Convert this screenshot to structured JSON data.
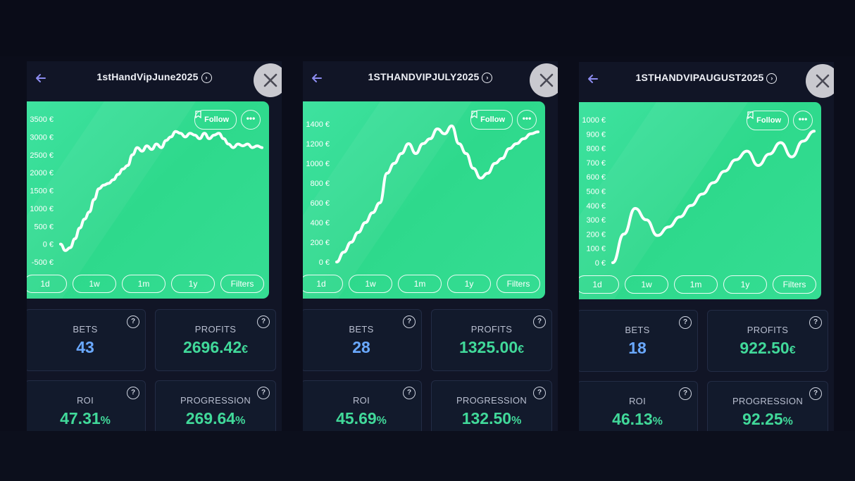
{
  "panels": [
    {
      "title": "1stHandVipJune2025",
      "follow_label": "Follow",
      "more_label": "•••",
      "ranges": [
        "1d",
        "1w",
        "1m",
        "1y",
        "Filters"
      ],
      "chart_data": {
        "type": "line",
        "y_ticks": [
          "3500 €",
          "3000 €",
          "2500 €",
          "2000 €",
          "1500 €",
          "1000 €",
          "500 €",
          "0 €",
          "-500 €"
        ],
        "ylim": [
          -500,
          3500
        ],
        "x": [
          0,
          1,
          2,
          3,
          4,
          5,
          6,
          7,
          8,
          9,
          10,
          11,
          12,
          13,
          14,
          15,
          16,
          17,
          18,
          19,
          20,
          21,
          22,
          23,
          24,
          25,
          26,
          27,
          28,
          29,
          30,
          31,
          32,
          33,
          34,
          35,
          36,
          37,
          38,
          39,
          40,
          41,
          42
        ],
        "values": [
          0,
          -180,
          -100,
          150,
          450,
          700,
          900,
          1250,
          1550,
          1650,
          1700,
          1800,
          1950,
          2100,
          2200,
          2500,
          2700,
          2600,
          2750,
          2650,
          2800,
          2700,
          2900,
          3000,
          3150,
          3100,
          3000,
          3100,
          3050,
          2950,
          3100,
          2950,
          3050,
          3100,
          2950,
          2800,
          2700,
          2800,
          2750,
          2800,
          2700,
          2750,
          2700
        ]
      },
      "stats": {
        "bets_label": "BETS",
        "bets_value": "43",
        "profits_label": "PROFITS",
        "profits_value": "2696.42",
        "profits_unit": "€",
        "roi_label": "ROI",
        "roi_value": "47.31",
        "roi_unit": "%",
        "progression_label": "PROGRESSION",
        "progression_value": "269.64",
        "progression_unit": "%"
      }
    },
    {
      "title": "1STHANDVIPJULY2025",
      "follow_label": "Follow",
      "more_label": "•••",
      "ranges": [
        "1d",
        "1w",
        "1m",
        "1y",
        "Filters"
      ],
      "chart_data": {
        "type": "line",
        "y_ticks": [
          "1400 €",
          "1200 €",
          "1000 €",
          "800 €",
          "600 €",
          "400 €",
          "200 €",
          "0 €"
        ],
        "ylim": [
          0,
          1450
        ],
        "x": [
          0,
          1,
          2,
          3,
          4,
          5,
          6,
          7,
          8,
          9,
          10,
          11,
          12,
          13,
          14,
          15,
          16,
          17,
          18,
          19,
          20,
          21,
          22,
          23,
          24,
          25,
          26,
          27,
          28
        ],
        "values": [
          0,
          100,
          200,
          300,
          400,
          500,
          600,
          900,
          1000,
          1100,
          1200,
          1100,
          1200,
          1250,
          1350,
          1300,
          1380,
          1200,
          1100,
          950,
          850,
          900,
          1000,
          1050,
          1150,
          1200,
          1250,
          1300,
          1320
        ]
      },
      "stats": {
        "bets_label": "BETS",
        "bets_value": "28",
        "profits_label": "PROFITS",
        "profits_value": "1325.00",
        "profits_unit": "€",
        "roi_label": "ROI",
        "roi_value": "45.69",
        "roi_unit": "%",
        "progression_label": "PROGRESSION",
        "progression_value": "132.50",
        "progression_unit": "%"
      }
    },
    {
      "title": "1STHANDVIPAUGUST2025",
      "follow_label": "Follow",
      "more_label": "•••",
      "ranges": [
        "1d",
        "1w",
        "1m",
        "1y",
        "Filters"
      ],
      "chart_data": {
        "type": "line",
        "y_ticks": [
          "1000 €",
          "900 €",
          "800 €",
          "700 €",
          "600 €",
          "500 €",
          "400 €",
          "300 €",
          "200 €",
          "100 €",
          "0 €"
        ],
        "ylim": [
          0,
          1000
        ],
        "x": [
          0,
          1,
          2,
          3,
          4,
          5,
          6,
          7,
          8,
          9,
          10,
          11,
          12,
          13,
          14,
          15,
          16,
          17,
          18
        ],
        "values": [
          0,
          200,
          380,
          300,
          190,
          250,
          320,
          400,
          480,
          560,
          640,
          720,
          780,
          680,
          760,
          840,
          740,
          850,
          920
        ]
      },
      "stats": {
        "bets_label": "BETS",
        "bets_value": "18",
        "profits_label": "PROFITS",
        "profits_value": "922.50",
        "profits_unit": "€",
        "roi_label": "ROI",
        "roi_value": "46.13",
        "roi_unit": "%",
        "progression_label": "PROGRESSION",
        "progression_value": "92.25",
        "progression_unit": "%"
      }
    }
  ]
}
